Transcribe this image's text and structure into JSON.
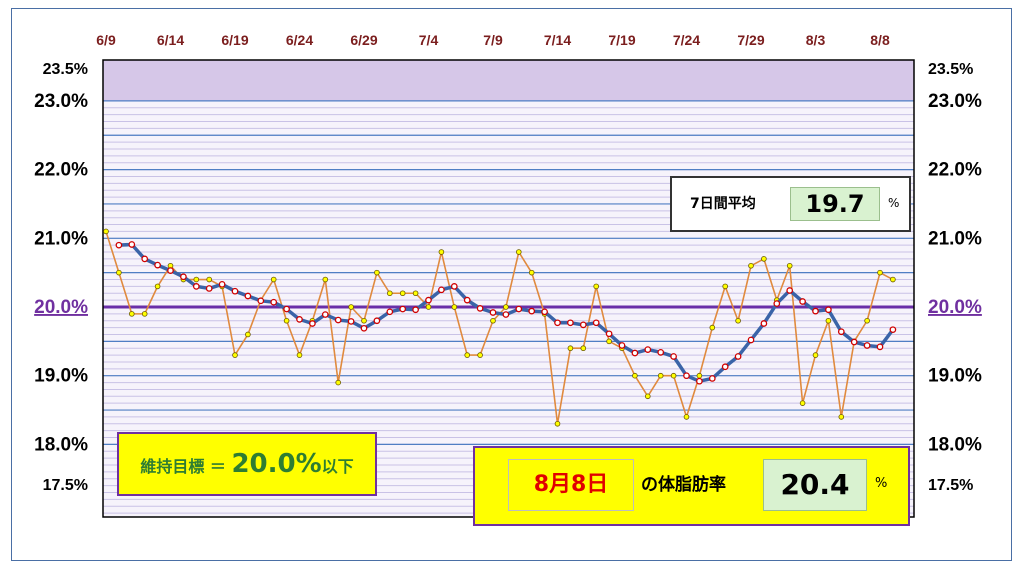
{
  "chart_data": {
    "type": "line",
    "x_tick_labels": [
      "6/9",
      "6/14",
      "6/19",
      "6/24",
      "6/29",
      "7/4",
      "7/9",
      "7/14",
      "7/19",
      "7/24",
      "7/29",
      "8/3",
      "8/8"
    ],
    "y_tick_labels": [
      {
        "value": 23.5,
        "label": "23.5%",
        "style": "small"
      },
      {
        "value": 23.0,
        "label": "23.0%",
        "style": "big"
      },
      {
        "value": 22.0,
        "label": "22.0%",
        "style": "big"
      },
      {
        "value": 21.0,
        "label": "21.0%",
        "style": "big"
      },
      {
        "value": 20.0,
        "label": "20.0%",
        "style": "target"
      },
      {
        "value": 19.0,
        "label": "19.0%",
        "style": "big"
      },
      {
        "value": 18.0,
        "label": "18.0%",
        "style": "big"
      },
      {
        "value": 17.5,
        "label": "17.5%",
        "style": "small"
      }
    ],
    "ylim": [
      17.5,
      23.5
    ],
    "target_line": 20.0,
    "series": [
      {
        "values": [
          21.1,
          20.5,
          19.9,
          19.9,
          20.3,
          20.6,
          20.4,
          20.4,
          20.4,
          20.3,
          19.3,
          19.6,
          20.1,
          20.4,
          19.8,
          19.3,
          19.8,
          20.4,
          18.9,
          20.0,
          19.8,
          20.5,
          20.2,
          20.2,
          20.2,
          20.0,
          20.8,
          20.0,
          19.3,
          19.3,
          19.8,
          20.0,
          20.8,
          20.5,
          19.9,
          18.3,
          19.4,
          19.4,
          20.3,
          19.5,
          19.4,
          19.0,
          18.7,
          19.0,
          19.0,
          18.4,
          19.0,
          19.7,
          20.3,
          19.8,
          20.6,
          20.7,
          20.1,
          20.6,
          18.6,
          19.3,
          19.8,
          18.4,
          19.5,
          19.8,
          20.5,
          20.4
        ]
      },
      {
        "values": [
          20.9,
          20.91,
          20.7,
          20.61,
          20.53,
          20.44,
          20.3,
          20.27,
          20.33,
          20.23,
          20.16,
          20.09,
          20.07,
          19.97,
          19.82,
          19.76,
          19.89,
          19.81,
          19.79,
          19.69,
          19.8,
          19.93,
          19.97,
          19.96,
          20.1,
          20.25,
          20.3,
          20.1,
          19.98,
          19.92,
          19.89,
          19.97,
          19.94,
          19.93,
          19.77,
          19.77,
          19.74,
          19.77,
          19.61,
          19.44,
          19.33,
          19.38,
          19.34,
          19.28,
          19.0,
          18.92,
          18.96,
          19.13,
          19.28,
          19.52,
          19.76,
          20.05,
          20.24,
          20.08,
          19.94,
          19.96,
          19.64,
          19.49,
          19.44,
          19.42,
          19.67
        ]
      }
    ],
    "colors": {
      "daily_line": "#e08a3e",
      "daily_marker_fill": "#ffff00",
      "daily_marker_edge": "#6b5a00",
      "average_line": "#3a64a8",
      "average_marker_fill": "#ffffff",
      "average_marker_edge": "#d00000",
      "target_line": "#6a2fa8",
      "band_fill": "#d6c7e8",
      "grid_blue": "#4f7ec4",
      "grid_lavender": "#c9c2e6",
      "tick_x": "#7b1e1e",
      "target_label": "#7030a0"
    }
  },
  "average_panel": {
    "label": "7日間平均",
    "value": "19.7",
    "unit": "%"
  },
  "target_panel": {
    "prefix": "維持目標 ＝ ",
    "value": "20.0%",
    "suffix": "以下"
  },
  "today_panel": {
    "date": "8月8日",
    "label": "の体脂肪率",
    "value": "20.4",
    "unit": "%"
  }
}
